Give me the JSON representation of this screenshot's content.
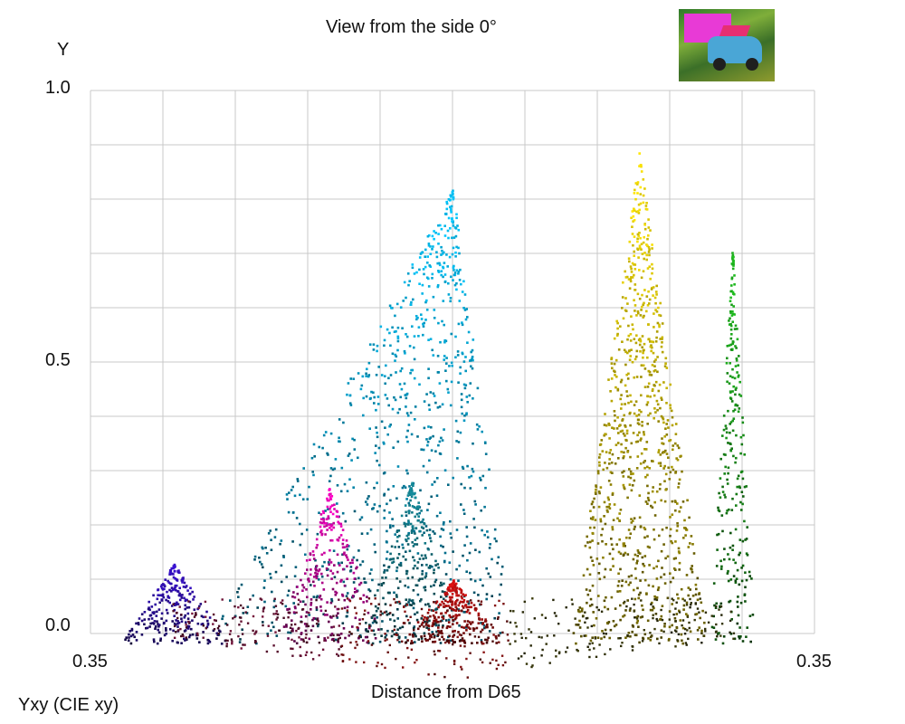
{
  "chart_data": {
    "type": "scatter",
    "title": "View from the side 0°",
    "ylabel": "Y",
    "xlabel": "Distance from D65",
    "corner_label": "Yxy (CIE xy)",
    "x_tick_labels": [
      "0.35",
      "0.35"
    ],
    "y_ticks": [
      {
        "value": 0.0,
        "label": "0.0"
      },
      {
        "value": 0.5,
        "label": "0.5"
      },
      {
        "value": 1.0,
        "label": "1.0"
      }
    ],
    "ylim": [
      0,
      1
    ],
    "xlim": [
      -0.35,
      0.35
    ],
    "grid": true,
    "lobes": [
      {
        "name": "blue-cyan",
        "color": "#00c8ff",
        "peak_x": 0.0,
        "peak_y": 0.82
      },
      {
        "name": "magenta",
        "color": "#ff00c8",
        "peak_x": -0.12,
        "peak_y": 0.27
      },
      {
        "name": "blue-violet",
        "color": "#3a10d8",
        "peak_x": -0.27,
        "peak_y": 0.13
      },
      {
        "name": "teal",
        "color": "#148c9c",
        "peak_x": -0.04,
        "peak_y": 0.28
      },
      {
        "name": "red",
        "color": "#e01212",
        "peak_x": 0.0,
        "peak_y": 0.1
      },
      {
        "name": "yellow",
        "color": "#ffe600",
        "peak_x": 0.18,
        "peak_y": 0.89
      },
      {
        "name": "green",
        "color": "#20c020",
        "peak_x": 0.27,
        "peak_y": 0.72
      }
    ]
  },
  "thumbnail": {
    "name": "source-image-thumbnail"
  }
}
